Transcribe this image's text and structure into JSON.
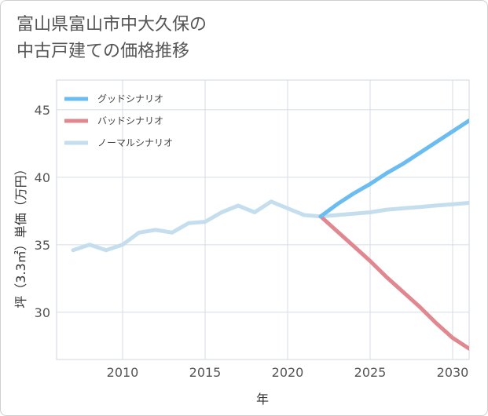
{
  "title_lines": [
    "富山県富山市中大久保の",
    "中古戸建ての価格推移"
  ],
  "chart_data": {
    "type": "line",
    "xlabel": "年",
    "ylabel": "坪（3.3㎡）単価（万円）",
    "xlim": [
      2006,
      2031
    ],
    "ylim": [
      26.5,
      47.2
    ],
    "x_ticks": [
      2010,
      2015,
      2020,
      2025,
      2030
    ],
    "y_ticks": [
      30,
      35,
      40,
      45
    ],
    "grid": true,
    "legend_position": "top-left",
    "series": [
      {
        "name": "グッドシナリオ",
        "color": "#6bbcf0",
        "x": [
          2022,
          2023,
          2024,
          2025,
          2026,
          2027,
          2028,
          2029,
          2030,
          2031
        ],
        "y": [
          37.1,
          38.0,
          38.8,
          39.5,
          40.3,
          41.0,
          41.8,
          42.6,
          43.4,
          44.2
        ]
      },
      {
        "name": "バッドシナリオ",
        "color": "#e0878f",
        "x": [
          2022,
          2023,
          2024,
          2025,
          2026,
          2027,
          2028,
          2029,
          2030,
          2031
        ],
        "y": [
          37.1,
          36.0,
          34.9,
          33.8,
          32.6,
          31.5,
          30.4,
          29.2,
          28.1,
          27.3
        ]
      },
      {
        "name": "ノーマルシナリオ",
        "color": "#c5deee",
        "x": [
          2007,
          2008,
          2009,
          2010,
          2011,
          2012,
          2013,
          2014,
          2015,
          2016,
          2017,
          2018,
          2019,
          2020,
          2021,
          2022,
          2023,
          2024,
          2025,
          2026,
          2027,
          2028,
          2029,
          2030,
          2031
        ],
        "y": [
          34.6,
          35.0,
          34.6,
          35.0,
          35.9,
          36.1,
          35.9,
          36.6,
          36.7,
          37.4,
          37.9,
          37.4,
          38.2,
          37.7,
          37.2,
          37.1,
          37.2,
          37.3,
          37.4,
          37.6,
          37.7,
          37.8,
          37.9,
          38.0,
          38.1
        ]
      }
    ]
  }
}
